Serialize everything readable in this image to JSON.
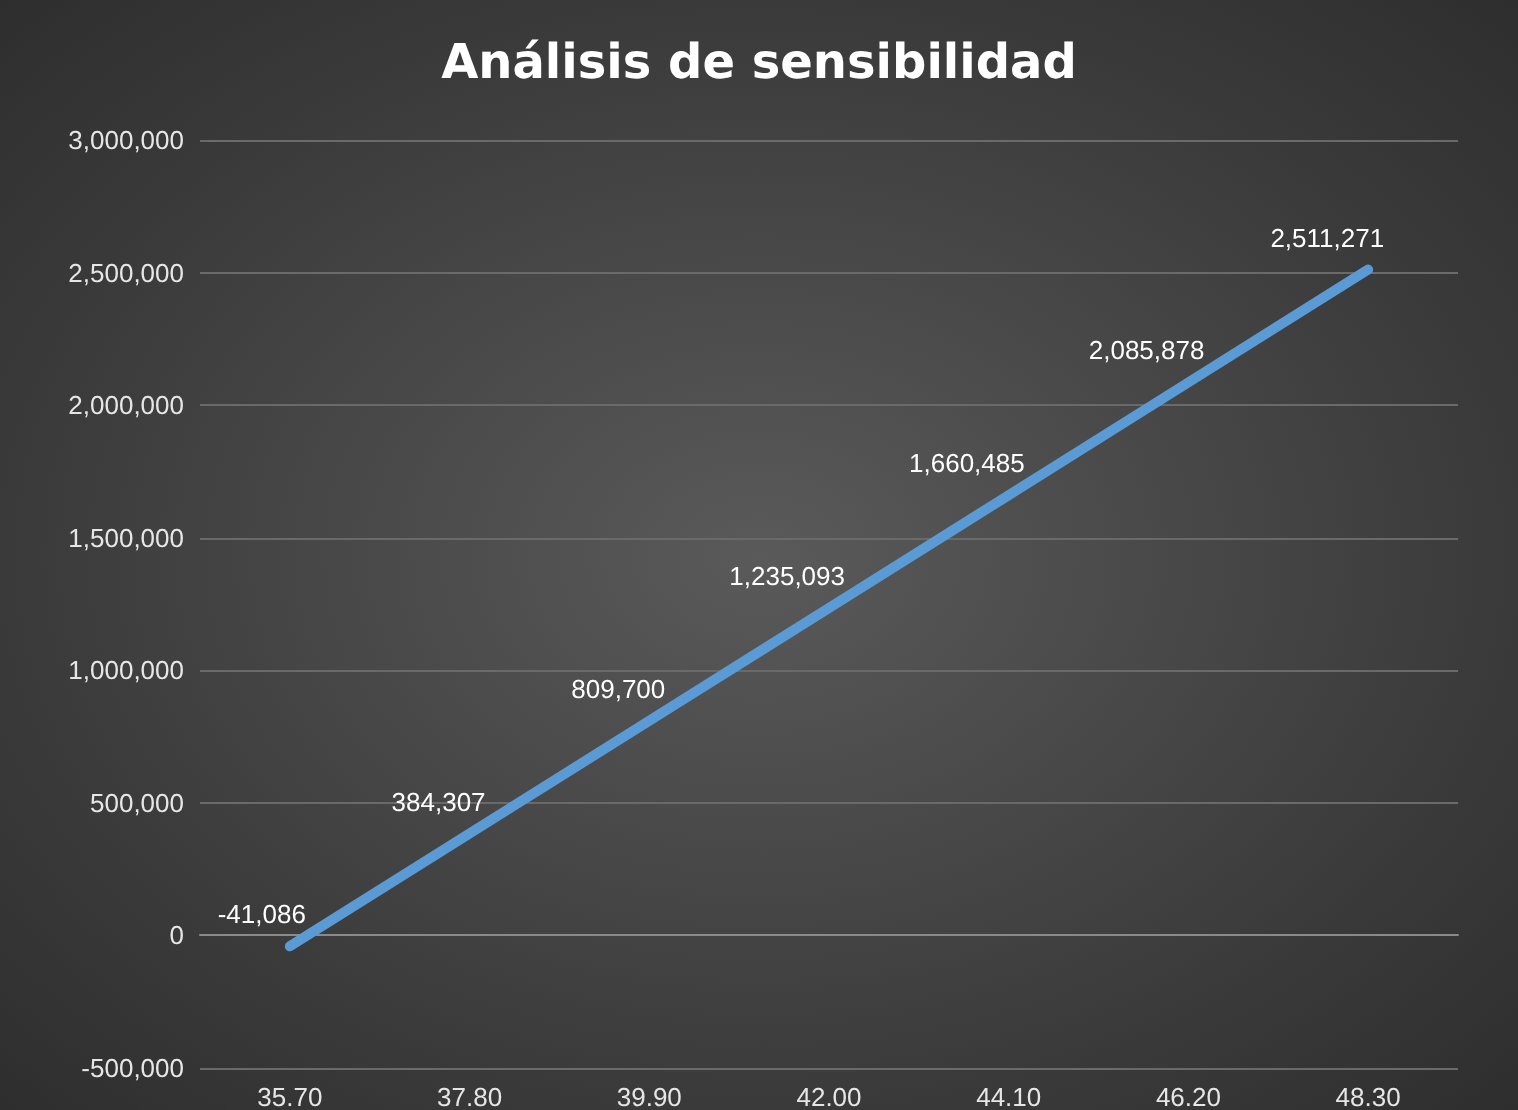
{
  "chart_data": {
    "type": "line",
    "title": "Análisis de sensibilidad",
    "categories": [
      "35.70",
      "37.80",
      "39.90",
      "42.00",
      "44.10",
      "46.20",
      "48.30"
    ],
    "series": [
      {
        "color": "#5b9bd5",
        "values": [
          -41086,
          384307,
          809700,
          1235093,
          1660485,
          2085878,
          2511271
        ],
        "value_labels": [
          "-41,086",
          "384,307",
          "809,700",
          "1,235,093",
          "1,660,485",
          "2,085,878",
          "2,511,271"
        ]
      }
    ],
    "ylim": [
      -500000,
      3000000
    ],
    "yticks": [
      {
        "value": -500000,
        "label": "-500,000"
      },
      0,
      {
        "value": 500000,
        "label": "500,000"
      },
      {
        "value": 1000000,
        "label": "1,000,000"
      },
      {
        "value": 1500000,
        "label": "1,500,000"
      },
      {
        "value": 2000000,
        "label": "2,000,000"
      },
      {
        "value": 2500000,
        "label": "2,500,000"
      },
      {
        "value": 3000000,
        "label": "3,000,000"
      }
    ],
    "grid": "y",
    "marker": "none",
    "line_style": "solid"
  }
}
